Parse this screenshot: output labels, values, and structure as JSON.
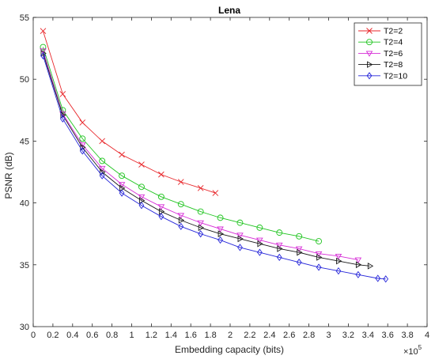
{
  "chart_data": {
    "type": "line",
    "title": "Lena",
    "xlabel": "Embedding capacity (bits)",
    "ylabel": "PSNR (dB)",
    "x_multiplier_label": "×10",
    "x_multiplier_exp": "5",
    "xlim": [
      0,
      4
    ],
    "ylim": [
      30,
      55
    ],
    "x_ticks": [
      0,
      0.2,
      0.4,
      0.6,
      0.8,
      1,
      1.2,
      1.4,
      1.6,
      1.8,
      2,
      2.2,
      2.4,
      2.6,
      2.8,
      3,
      3.2,
      3.4,
      3.6,
      3.8,
      4
    ],
    "x_tick_labels": [
      "0",
      "0.2",
      "0.4",
      "0.6",
      "0.8",
      "1",
      "1.2",
      "1.4",
      "1.6",
      "1.8",
      "2",
      "2.2",
      "2.4",
      "2.6",
      "2.8",
      "3",
      "3.2",
      "3.4",
      "3.6",
      "3.8",
      "4"
    ],
    "y_ticks": [
      30,
      35,
      40,
      45,
      50,
      55
    ],
    "y_tick_labels": [
      "30",
      "35",
      "40",
      "45",
      "50",
      "55"
    ],
    "grid": false,
    "legend_position": "top-right",
    "series": [
      {
        "name": "T2=2",
        "color": "#e8262a",
        "marker": "x",
        "x": [
          0.1,
          0.3,
          0.5,
          0.7,
          0.9,
          1.1,
          1.3,
          1.5,
          1.7,
          1.85
        ],
        "y": [
          53.9,
          48.8,
          46.5,
          45.0,
          43.9,
          43.1,
          42.3,
          41.7,
          41.2,
          40.8
        ]
      },
      {
        "name": "T2=4",
        "color": "#1fc41f",
        "marker": "circle",
        "x": [
          0.1,
          0.3,
          0.5,
          0.7,
          0.9,
          1.1,
          1.3,
          1.5,
          1.7,
          1.9,
          2.1,
          2.3,
          2.5,
          2.7,
          2.9
        ],
        "y": [
          52.6,
          47.5,
          45.2,
          43.4,
          42.2,
          41.3,
          40.5,
          39.9,
          39.3,
          38.8,
          38.4,
          38.0,
          37.6,
          37.3,
          36.9
        ]
      },
      {
        "name": "T2=6",
        "color": "#d62bd6",
        "marker": "triangle-down",
        "x": [
          0.1,
          0.3,
          0.5,
          0.7,
          0.9,
          1.1,
          1.3,
          1.5,
          1.7,
          1.9,
          2.1,
          2.3,
          2.5,
          2.7,
          2.9,
          3.1,
          3.3
        ],
        "y": [
          52.3,
          47.2,
          44.7,
          42.8,
          41.5,
          40.5,
          39.7,
          39.0,
          38.4,
          37.9,
          37.4,
          37.0,
          36.6,
          36.3,
          35.9,
          35.7,
          35.4
        ]
      },
      {
        "name": "T2=8",
        "color": "#1a1a1a",
        "marker": "triangle-right",
        "x": [
          0.1,
          0.3,
          0.5,
          0.7,
          0.9,
          1.1,
          1.3,
          1.5,
          1.7,
          1.9,
          2.1,
          2.3,
          2.5,
          2.7,
          2.9,
          3.1,
          3.3,
          3.42
        ],
        "y": [
          52.1,
          47.1,
          44.5,
          42.5,
          41.2,
          40.2,
          39.3,
          38.6,
          38.0,
          37.5,
          37.1,
          36.7,
          36.3,
          36.0,
          35.6,
          35.3,
          35.0,
          34.9
        ]
      },
      {
        "name": "T2=10",
        "color": "#2626d9",
        "marker": "diamond",
        "x": [
          0.1,
          0.3,
          0.5,
          0.7,
          0.9,
          1.1,
          1.3,
          1.5,
          1.7,
          1.9,
          2.1,
          2.3,
          2.5,
          2.7,
          2.9,
          3.1,
          3.3,
          3.5,
          3.58
        ],
        "y": [
          51.9,
          46.8,
          44.2,
          42.2,
          40.8,
          39.8,
          38.9,
          38.1,
          37.5,
          37.0,
          36.4,
          36.0,
          35.6,
          35.2,
          34.8,
          34.5,
          34.2,
          33.9,
          33.85
        ]
      }
    ]
  }
}
